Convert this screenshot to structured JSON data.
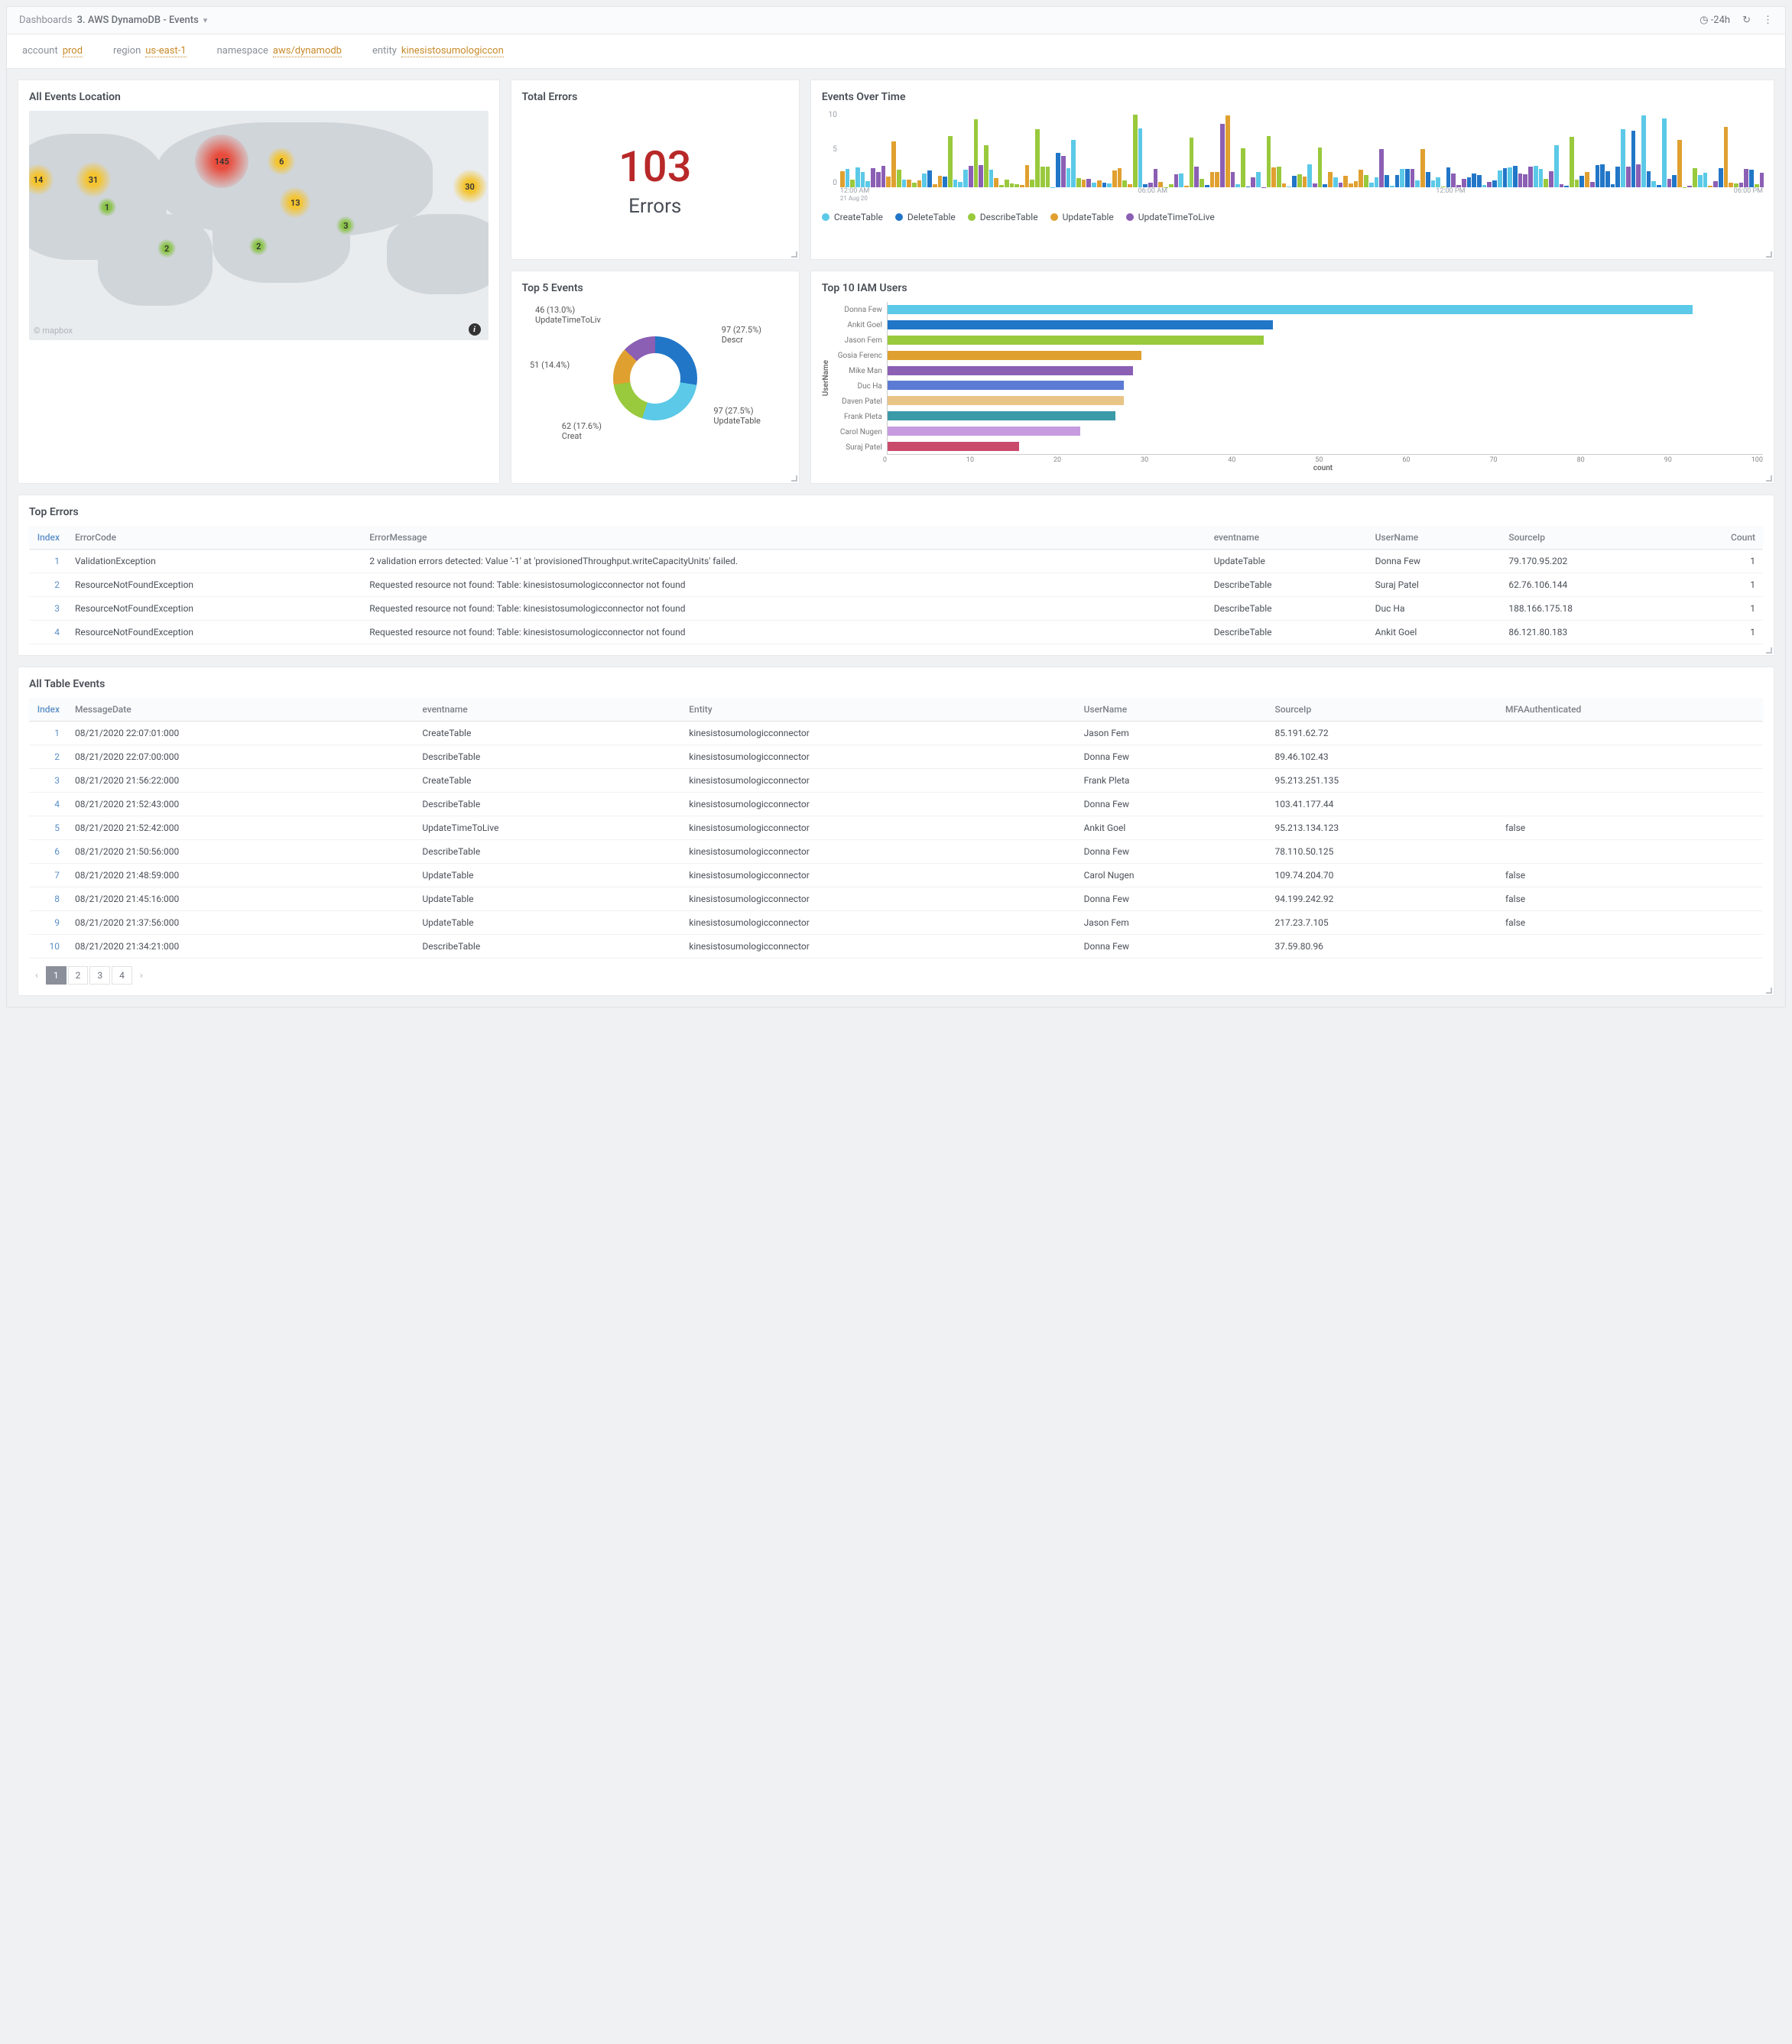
{
  "header": {
    "breadcrumb_label": "Dashboards",
    "breadcrumb_value": "3. AWS DynamoDB - Events",
    "time_range": "-24h"
  },
  "filters": [
    {
      "key": "account",
      "value": "prod"
    },
    {
      "key": "region",
      "value": "us-east-1"
    },
    {
      "key": "namespace",
      "value": "aws/dynamodb"
    },
    {
      "key": "entity",
      "value": "kinesistosumologiccon"
    }
  ],
  "map_panel": {
    "title": "All Events Location",
    "attribution": "© mapbox",
    "bubbles": [
      {
        "v": "145",
        "x": 42,
        "y": 22,
        "size": 70,
        "cls": "b-red"
      },
      {
        "v": "31",
        "x": 14,
        "y": 30,
        "size": 46,
        "cls": "b-yel"
      },
      {
        "v": "14",
        "x": 2,
        "y": 30,
        "size": 40,
        "cls": "b-yel"
      },
      {
        "v": "6",
        "x": 55,
        "y": 22,
        "size": 36,
        "cls": "b-yel"
      },
      {
        "v": "13",
        "x": 58,
        "y": 40,
        "size": 40,
        "cls": "b-yel"
      },
      {
        "v": "30",
        "x": 96,
        "y": 33,
        "size": 44,
        "cls": "b-yel"
      },
      {
        "v": "1",
        "x": 17,
        "y": 42,
        "size": 24,
        "cls": "b-grn"
      },
      {
        "v": "2",
        "x": 30,
        "y": 60,
        "size": 24,
        "cls": "b-grn"
      },
      {
        "v": "2",
        "x": 50,
        "y": 59,
        "size": 24,
        "cls": "b-grn"
      },
      {
        "v": "3",
        "x": 69,
        "y": 50,
        "size": 24,
        "cls": "b-grn"
      }
    ]
  },
  "total_errors": {
    "title": "Total Errors",
    "value": "103",
    "label": "Errors",
    "value_color": "#b82828"
  },
  "events_over_time": {
    "title": "Events Over Time",
    "ylim": [
      0,
      10
    ],
    "yticks": [
      "10",
      "5",
      "0"
    ],
    "xticks": [
      "12:00 AM",
      "06:00 AM",
      "12:00 PM",
      "06:00 PM"
    ],
    "xdate": "21 Aug 20",
    "series_colors": [
      "#5bc9e7",
      "#2176c7",
      "#99c93c",
      "#e0a030",
      "#8b5fb4"
    ],
    "legend": [
      {
        "label": "CreateTable",
        "color": "#5bc9e7"
      },
      {
        "label": "DeleteTable",
        "color": "#2176c7"
      },
      {
        "label": "DescribeTable",
        "color": "#99c93c"
      },
      {
        "label": "UpdateTable",
        "color": "#e0a030"
      },
      {
        "label": "UpdateTimeToLive",
        "color": "#8b5fb4"
      }
    ]
  },
  "top5_events": {
    "title": "Top 5 Events",
    "type": "donut",
    "slices": [
      {
        "label": "97 (27.5%) Descr",
        "value": 27.5,
        "color": "#2176c7",
        "lx": 75,
        "ly": 15
      },
      {
        "label": "97 (27.5%) UpdateTable",
        "value": 27.5,
        "color": "#5bc9e7",
        "lx": 72,
        "ly": 68
      },
      {
        "label": "62 (17.6%) Creat",
        "value": 17.6,
        "color": "#99c93c",
        "lx": 15,
        "ly": 78
      },
      {
        "label": "51 (14.4%)",
        "value": 14.4,
        "color": "#e0a030",
        "lx": 3,
        "ly": 38
      },
      {
        "label": "46 (13.0%) UpdateTimeToLiv",
        "value": 13.0,
        "color": "#8b5fb4",
        "lx": 5,
        "ly": 2
      }
    ]
  },
  "top10_iam": {
    "title": "Top 10 IAM Users",
    "type": "hbar",
    "ylabel": "UserName",
    "xlabel": "count",
    "xlim": [
      0,
      100
    ],
    "xtick_step": 10,
    "xticks": [
      "0",
      "10",
      "20",
      "30",
      "40",
      "50",
      "60",
      "70",
      "80",
      "90",
      "100"
    ],
    "bars": [
      {
        "label": "Donna Few",
        "value": 92,
        "color": "#5bc9e7"
      },
      {
        "label": "Ankit Goel",
        "value": 44,
        "color": "#2176c7"
      },
      {
        "label": "Jason Fem",
        "value": 43,
        "color": "#99c93c"
      },
      {
        "label": "Gosia Ferenc",
        "value": 29,
        "color": "#e0a030"
      },
      {
        "label": "Mike Man",
        "value": 28,
        "color": "#8b5fb4"
      },
      {
        "label": "Duc Ha",
        "value": 27,
        "color": "#5b7bd4"
      },
      {
        "label": "Daven Patel",
        "value": 27,
        "color": "#e8c487"
      },
      {
        "label": "Frank Pleta",
        "value": 26,
        "color": "#3a9aa8"
      },
      {
        "label": "Carol Nugen",
        "value": 22,
        "color": "#c69be0"
      },
      {
        "label": "Suraj Patel",
        "value": 15,
        "color": "#c94a6a"
      }
    ]
  },
  "top_errors": {
    "title": "Top Errors",
    "columns": [
      "Index",
      "ErrorCode",
      "ErrorMessage",
      "eventname",
      "UserName",
      "SourceIp",
      "Count"
    ],
    "rows": [
      [
        "1",
        "ValidationException",
        "2 validation errors detected: Value '-1' at 'provisionedThroughput.writeCapacityUnits' failed.",
        "UpdateTable",
        "Donna Few",
        "79.170.95.202",
        "1"
      ],
      [
        "2",
        "ResourceNotFoundException",
        "Requested resource not found: Table: kinesistosumologicconnector not found",
        "DescribeTable",
        "Suraj Patel",
        "62.76.106.144",
        "1"
      ],
      [
        "3",
        "ResourceNotFoundException",
        "Requested resource not found: Table: kinesistosumologicconnector not found",
        "DescribeTable",
        "Duc Ha",
        "188.166.175.18",
        "1"
      ],
      [
        "4",
        "ResourceNotFoundException",
        "Requested resource not found: Table: kinesistosumologicconnector not found",
        "DescribeTable",
        "Ankit Goel",
        "86.121.80.183",
        "1"
      ]
    ]
  },
  "all_table_events": {
    "title": "All Table Events",
    "columns": [
      "Index",
      "MessageDate",
      "eventname",
      "Entity",
      "UserName",
      "SourceIp",
      "MFAAuthenticated"
    ],
    "rows": [
      [
        "1",
        "08/21/2020 22:07:01:000",
        "CreateTable",
        "kinesistosumologicconnector",
        "Jason Fem",
        "85.191.62.72",
        ""
      ],
      [
        "2",
        "08/21/2020 22:07:00:000",
        "DescribeTable",
        "kinesistosumologicconnector",
        "Donna Few",
        "89.46.102.43",
        ""
      ],
      [
        "3",
        "08/21/2020 21:56:22:000",
        "CreateTable",
        "kinesistosumologicconnector",
        "Frank Pleta",
        "95.213.251.135",
        ""
      ],
      [
        "4",
        "08/21/2020 21:52:43:000",
        "DescribeTable",
        "kinesistosumologicconnector",
        "Donna Few",
        "103.41.177.44",
        ""
      ],
      [
        "5",
        "08/21/2020 21:52:42:000",
        "UpdateTimeToLive",
        "kinesistosumologicconnector",
        "Ankit Goel",
        "95.213.134.123",
        "false"
      ],
      [
        "6",
        "08/21/2020 21:50:56:000",
        "DescribeTable",
        "kinesistosumologicconnector",
        "Donna Few",
        "78.110.50.125",
        ""
      ],
      [
        "7",
        "08/21/2020 21:48:59:000",
        "UpdateTable",
        "kinesistosumologicconnector",
        "Carol Nugen",
        "109.74.204.70",
        "false"
      ],
      [
        "8",
        "08/21/2020 21:45:16:000",
        "UpdateTable",
        "kinesistosumologicconnector",
        "Donna Few",
        "94.199.242.92",
        "false"
      ],
      [
        "9",
        "08/21/2020 21:37:56:000",
        "UpdateTable",
        "kinesistosumologicconnector",
        "Jason Fem",
        "217.23.7.105",
        "false"
      ],
      [
        "10",
        "08/21/2020 21:34:21:000",
        "DescribeTable",
        "kinesistosumologicconnector",
        "Donna Few",
        "37.59.80.96",
        ""
      ]
    ],
    "pages": [
      "1",
      "2",
      "3",
      "4"
    ],
    "active_page": "1"
  }
}
